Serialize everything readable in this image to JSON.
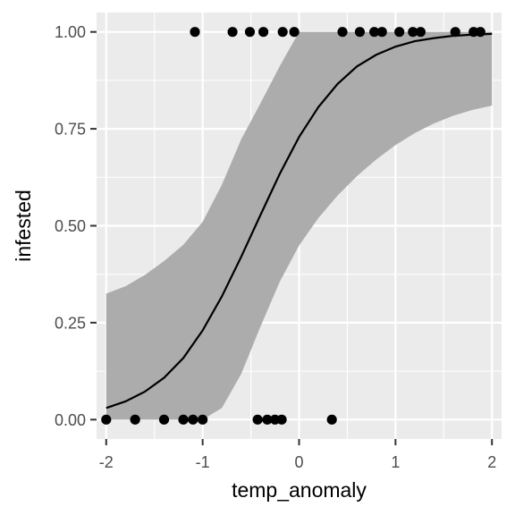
{
  "chart_data": {
    "type": "scatter",
    "xlabel": "temp_anomaly",
    "ylabel": "infested",
    "xlim": [
      -2.1,
      2.1
    ],
    "ylim": [
      -0.05,
      1.05
    ],
    "x_ticks": [
      -2,
      -1,
      0,
      1,
      2
    ],
    "x_tick_labels": [
      "-2",
      "-1",
      "0",
      "1",
      "2"
    ],
    "y_ticks": [
      0,
      0.25,
      0.5,
      0.75,
      1
    ],
    "y_tick_labels": [
      "0.00",
      "0.25",
      "0.50",
      "0.75",
      "1.00"
    ],
    "grid": true,
    "series": [
      {
        "kind": "points",
        "x": [
          -2.0,
          -1.7,
          -1.4,
          -1.2,
          -1.1,
          -1.0,
          -0.43,
          -0.33,
          -0.25,
          -0.18,
          0.34,
          -1.08,
          -0.69,
          -0.51,
          -0.37,
          -0.17,
          -0.05,
          0.45,
          0.63,
          0.78,
          0.86,
          1.04,
          1.18,
          1.26,
          1.62,
          1.81,
          1.88
        ],
        "y": [
          0,
          0,
          0,
          0,
          0,
          0,
          0,
          0,
          0,
          0,
          0,
          1,
          1,
          1,
          1,
          1,
          1,
          1,
          1,
          1,
          1,
          1,
          1,
          1,
          1,
          1,
          1
        ]
      },
      {
        "kind": "logistic-fit",
        "x": [
          -2.0,
          -1.8,
          -1.6,
          -1.4,
          -1.2,
          -1.0,
          -0.8,
          -0.6,
          -0.4,
          -0.2,
          0.0,
          0.2,
          0.4,
          0.6,
          0.8,
          1.0,
          1.2,
          1.4,
          1.6,
          1.8,
          2.0
        ],
        "y": [
          0.03,
          0.047,
          0.072,
          0.108,
          0.159,
          0.23,
          0.318,
          0.42,
          0.528,
          0.634,
          0.729,
          0.806,
          0.866,
          0.911,
          0.941,
          0.962,
          0.976,
          0.984,
          0.99,
          0.993,
          0.995
        ],
        "lower": [
          0.0,
          0.0,
          0.0,
          0.0,
          0.0,
          0.0,
          0.03,
          0.118,
          0.24,
          0.356,
          0.449,
          0.52,
          0.578,
          0.628,
          0.671,
          0.708,
          0.739,
          0.764,
          0.784,
          0.799,
          0.81
        ],
        "upper": [
          0.325,
          0.344,
          0.373,
          0.409,
          0.451,
          0.51,
          0.606,
          0.723,
          0.816,
          0.912,
          1.0,
          1.0,
          1.0,
          1.0,
          1.0,
          1.0,
          1.0,
          1.0,
          1.0,
          1.0,
          1.0
        ]
      }
    ],
    "colors": {
      "panel": "#ebebeb",
      "grid_major": "#ffffff",
      "ribbon": "#acacac",
      "line": "#000000",
      "points": "#000000",
      "tick_label": "#4d4d4d",
      "axis_title": "#000000"
    }
  }
}
